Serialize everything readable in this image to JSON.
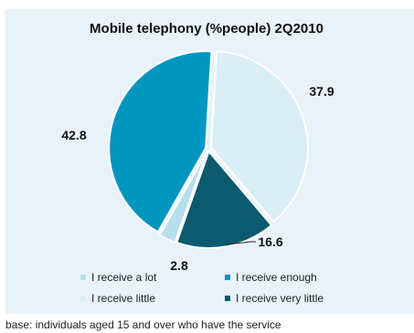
{
  "chart_data": {
    "type": "pie",
    "title": "Mobile telephony (%people) 2Q2010",
    "slices": [
      {
        "label": "I receive little",
        "value": 37.9,
        "display": "37.9",
        "color": "#daeef5"
      },
      {
        "label": "I receive very little",
        "value": 16.6,
        "display": "16.6",
        "color": "#0b5a6e"
      },
      {
        "label": "I receive a lot",
        "value": 2.8,
        "display": "2.8",
        "color": "#b6e0ec"
      },
      {
        "label": "I receive enough",
        "value": 42.8,
        "display": "42.8",
        "color": "#0096c0"
      }
    ],
    "legend": {
      "placement": "bottom",
      "items": [
        {
          "label": "I receive a lot",
          "color": "#b6e0ec"
        },
        {
          "label": "I receive enough",
          "color": "#0096c0"
        },
        {
          "label": "I receive little",
          "color": "#daeef5"
        },
        {
          "label": "I receive very little",
          "color": "#0b5a6e"
        }
      ]
    }
  },
  "footnote": "base: individuals aged 15 and over who have the service"
}
